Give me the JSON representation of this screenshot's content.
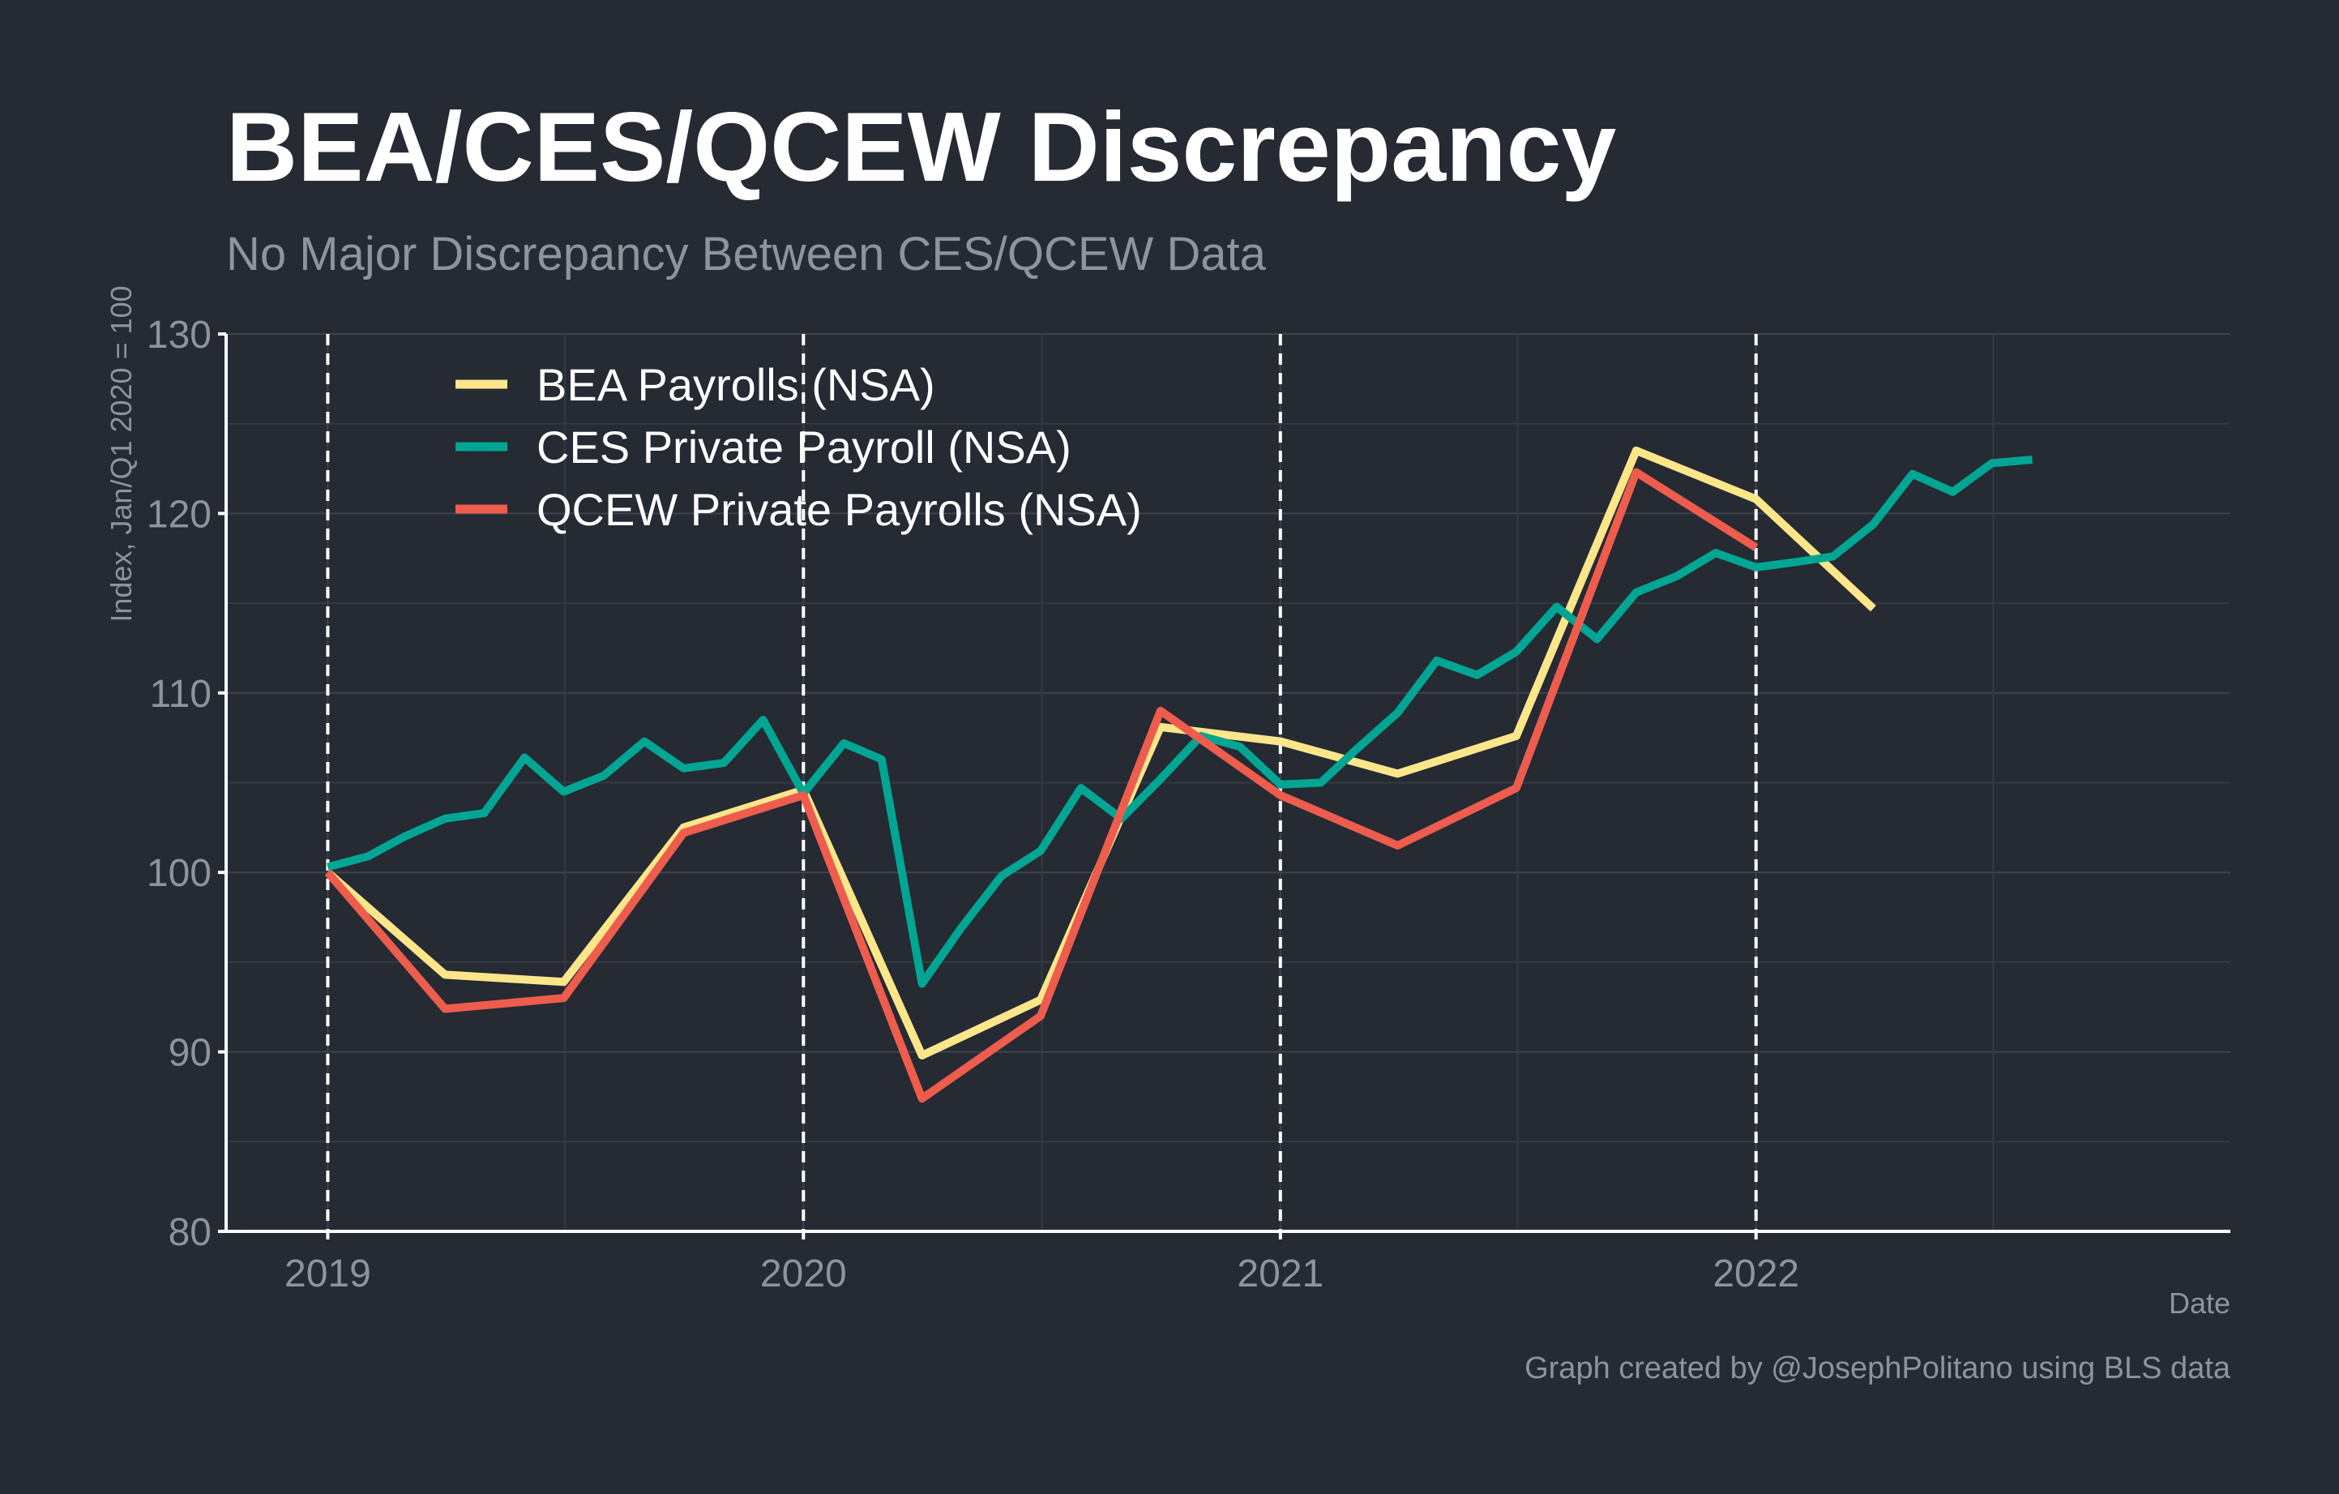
{
  "header": {
    "title": "BEA/CES/QCEW Discrepancy",
    "subtitle": "No Major Discrepancy Between CES/QCEW Data"
  },
  "caption": "Graph created by @JosephPolitano using BLS data",
  "colors": {
    "background": "#252a33",
    "bea": "#fde68a",
    "ces": "#00a693",
    "qcew": "#ee5c4d"
  },
  "chart_data": {
    "type": "line",
    "title": "BEA/CES/QCEW Discrepancy",
    "subtitle": "No Major Discrepancy Between CES/QCEW Data",
    "xlabel": "Date",
    "ylabel": "Index, Jan/Q1 2020 = 100",
    "xlim": [
      "2018-10-15",
      "2022-12-31"
    ],
    "ylim": [
      80,
      130
    ],
    "yticks": [
      80,
      90,
      100,
      110,
      120,
      130
    ],
    "xticks": [
      "2019",
      "2020",
      "2021",
      "2022"
    ],
    "xtick_dates": [
      "2019-01-01",
      "2020-01-01",
      "2021-01-01",
      "2022-01-01"
    ],
    "vlines": [
      "2019-01-01",
      "2020-01-01",
      "2021-01-01",
      "2022-01-01"
    ],
    "grid": true,
    "legend_position": "top-left",
    "series": [
      {
        "name": "BEA Payrolls (NSA)",
        "color": "#fde68a",
        "x": [
          "2019-01-01",
          "2019-04-01",
          "2019-07-01",
          "2019-10-01",
          "2020-01-01",
          "2020-04-01",
          "2020-07-01",
          "2020-10-01",
          "2021-01-01",
          "2021-04-01",
          "2021-07-01",
          "2021-10-01",
          "2022-01-01",
          "2022-04-01"
        ],
        "y": [
          100.0,
          94.3,
          93.9,
          102.5,
          104.6,
          89.8,
          92.9,
          108.1,
          107.3,
          105.5,
          107.6,
          123.5,
          120.8,
          114.7
        ]
      },
      {
        "name": "CES Private Payroll (NSA)",
        "color": "#00a693",
        "x": [
          "2019-01-01",
          "2019-02-01",
          "2019-03-01",
          "2019-04-01",
          "2019-05-01",
          "2019-06-01",
          "2019-07-01",
          "2019-08-01",
          "2019-09-01",
          "2019-10-01",
          "2019-11-01",
          "2019-12-01",
          "2020-01-01",
          "2020-02-01",
          "2020-03-01",
          "2020-04-01",
          "2020-05-01",
          "2020-06-01",
          "2020-07-01",
          "2020-08-01",
          "2020-09-01",
          "2020-10-01",
          "2020-11-01",
          "2020-12-01",
          "2021-01-01",
          "2021-02-01",
          "2021-03-01",
          "2021-04-01",
          "2021-05-01",
          "2021-06-01",
          "2021-07-01",
          "2021-08-01",
          "2021-09-01",
          "2021-10-01",
          "2021-11-01",
          "2021-12-01",
          "2022-01-01",
          "2022-02-01",
          "2022-03-01",
          "2022-04-01",
          "2022-05-01",
          "2022-06-01",
          "2022-07-01",
          "2022-08-01"
        ],
        "y": [
          100.3,
          100.9,
          102.0,
          103.0,
          103.3,
          106.4,
          104.5,
          105.4,
          107.3,
          105.8,
          106.1,
          108.5,
          104.4,
          107.2,
          106.3,
          93.8,
          96.9,
          99.8,
          101.2,
          104.7,
          103.0,
          105.2,
          107.6,
          107.0,
          104.9,
          105.0,
          106.9,
          108.9,
          111.8,
          111.0,
          112.3,
          114.8,
          113.0,
          115.6,
          116.5,
          117.8,
          117.0,
          117.3,
          117.6,
          119.4,
          122.2,
          121.2,
          122.8,
          123.0
        ]
      },
      {
        "name": "QCEW Private Payrolls (NSA)",
        "color": "#ee5c4d",
        "x": [
          "2019-01-01",
          "2019-04-01",
          "2019-07-01",
          "2019-10-01",
          "2020-01-01",
          "2020-04-01",
          "2020-07-01",
          "2020-10-01",
          "2021-01-01",
          "2021-04-01",
          "2021-07-01",
          "2021-10-01",
          "2022-01-01"
        ],
        "y": [
          100.0,
          92.4,
          93.0,
          102.2,
          104.3,
          87.4,
          92.0,
          109.0,
          104.3,
          101.5,
          104.7,
          122.3,
          118.1
        ]
      }
    ]
  }
}
